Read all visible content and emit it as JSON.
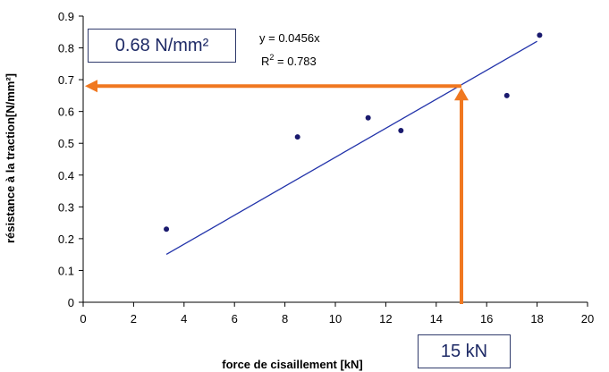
{
  "chart_data": {
    "type": "scatter",
    "xlabel": "force de cisaillement [kN]",
    "ylabel": "résistance à la traction[N/mm²]",
    "xlim": [
      0,
      20
    ],
    "ylim": [
      0,
      0.9
    ],
    "x_ticks": [
      "0",
      "2",
      "4",
      "6",
      "8",
      "10",
      "12",
      "14",
      "16",
      "18",
      "20"
    ],
    "y_ticks": [
      "0",
      "0.1",
      "0.2",
      "0.3",
      "0.4",
      "0.5",
      "0.6",
      "0.7",
      "0.8",
      "0.9"
    ],
    "grid": false,
    "legend": "none",
    "series": [
      {
        "points": [
          {
            "x": 3.3,
            "y": 0.23
          },
          {
            "x": 8.5,
            "y": 0.52
          },
          {
            "x": 11.3,
            "y": 0.58
          },
          {
            "x": 12.6,
            "y": 0.54
          },
          {
            "x": 16.8,
            "y": 0.65
          },
          {
            "x": 18.1,
            "y": 0.84
          }
        ]
      }
    ],
    "trendline": {
      "equation": "y = 0.0456x",
      "r_squared_label": "R",
      "r_squared_value": " = 0.783",
      "slope": 0.0456,
      "x_range": [
        3.3,
        18.0
      ]
    },
    "annotations": {
      "x_callout": "15 kN",
      "y_callout": "0.68 N/mm²",
      "x_value": 15,
      "y_value": 0.68
    },
    "colors": {
      "points": "#1a1a6e",
      "trendline": "#2233aa",
      "arrows": "#f07820",
      "axis": "#000000"
    }
  }
}
